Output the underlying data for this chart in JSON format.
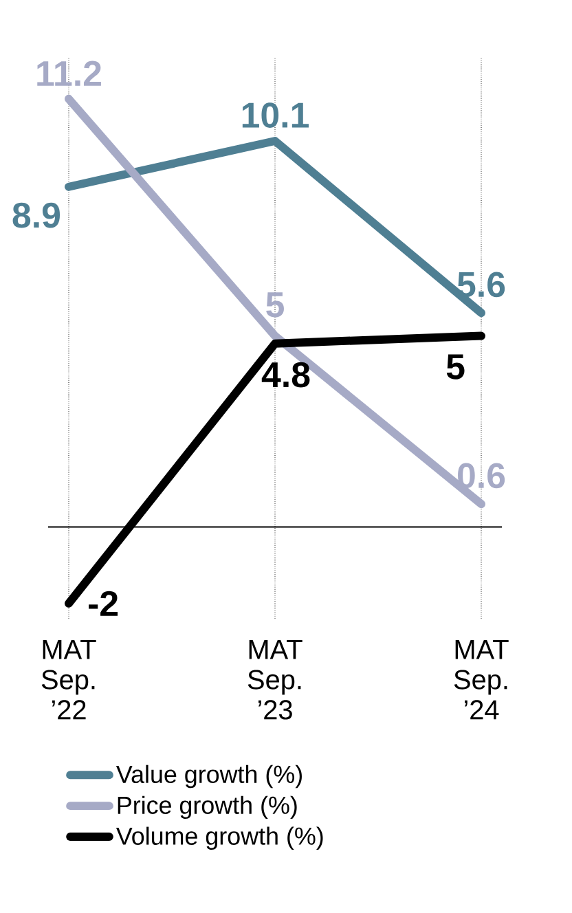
{
  "chart_data": {
    "type": "line",
    "categories": [
      "MAT Sep. ’22",
      "MAT Sep. ’23",
      "MAT Sep. ’24"
    ],
    "series": [
      {
        "name": "Value growth (%)",
        "color": "#4f7f93",
        "values": [
          8.9,
          10.1,
          5.6
        ]
      },
      {
        "name": "Price growth (%)",
        "color": "#a6aac6",
        "values": [
          11.2,
          5,
          0.6
        ]
      },
      {
        "name": "Volume growth (%)",
        "color": "#000000",
        "values": [
          -2,
          4.8,
          5
        ]
      }
    ],
    "data_labels": true,
    "grid": "x",
    "legend": "bottom",
    "marker": "none",
    "line_style": "solid",
    "ref_lines": [
      {
        "axis": "y",
        "value": 0,
        "color": "#000000"
      }
    ]
  }
}
